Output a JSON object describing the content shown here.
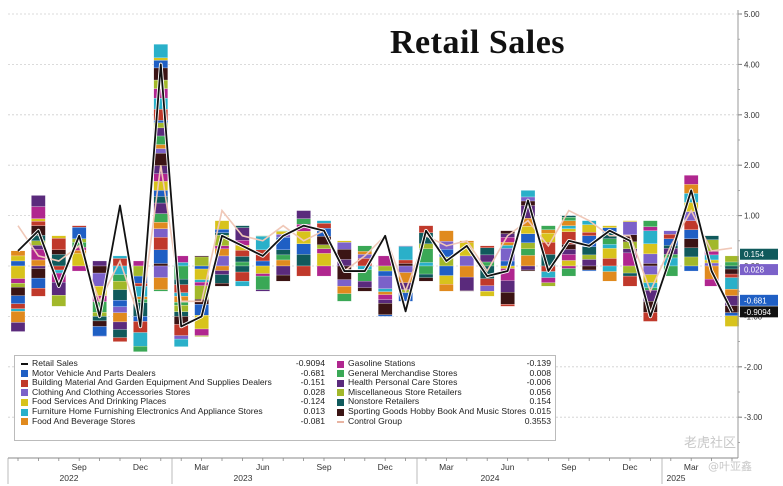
{
  "chart_data": {
    "type": "bar",
    "title": "Retail Sales",
    "stacked": true,
    "ylim": [
      -3.5,
      5.2
    ],
    "y_ticks": [
      "5.00",
      "4.00",
      "3.00",
      "2.00",
      "1.00",
      "0.00",
      "-1.00",
      "-2.00",
      "-3.00"
    ],
    "x_month_labels": [
      "Sep",
      "Dec",
      "Mar",
      "Jun",
      "Sep",
      "Dec",
      "Mar",
      "Jun",
      "Sep",
      "Dec",
      "Mar"
    ],
    "x_year_labels": [
      "2022",
      "2023",
      "2024",
      "2025"
    ],
    "x": [
      "2022-06",
      "2022-07",
      "2022-08",
      "2022-09",
      "2022-10",
      "2022-11",
      "2022-12",
      "2023-01",
      "2023-02",
      "2023-03",
      "2023-04",
      "2023-05",
      "2023-06",
      "2023-07",
      "2023-08",
      "2023-09",
      "2023-10",
      "2023-11",
      "2023-12",
      "2024-01",
      "2024-02",
      "2024-03",
      "2024-04",
      "2024-05",
      "2024-06",
      "2024-07",
      "2024-08",
      "2024-09",
      "2024-10",
      "2024-11",
      "2024-12",
      "2025-01",
      "2025-02",
      "2025-03",
      "2025-04",
      "2025-05"
    ],
    "retail_sales": [
      0.3,
      0.7,
      -0.4,
      0.6,
      -1.0,
      1.2,
      -1.2,
      4.0,
      -1.2,
      -1.0,
      0.6,
      0.4,
      0.2,
      0.6,
      0.8,
      0.7,
      -0.1,
      -0.1,
      0.6,
      -0.9,
      0.7,
      0.1,
      0.4,
      -0.2,
      -0.1,
      1.3,
      -0.1,
      0.5,
      0.4,
      0.7,
      0.5,
      -1.0,
      0.2,
      1.5,
      -0.1,
      -0.9094
    ],
    "control_group": [
      0.8,
      0.2,
      0.1,
      0.4,
      -0.7,
      0.1,
      -1.1,
      2.0,
      -0.7,
      -0.7,
      1.1,
      0.6,
      0.5,
      0.8,
      0.5,
      0.7,
      -0.1,
      0.2,
      0.6,
      -0.5,
      0.6,
      0.4,
      0.5,
      -0.1,
      0.6,
      0.9,
      0.4,
      1.1,
      0.9,
      0.6,
      0.6,
      -0.5,
      0.4,
      1.1,
      0.3,
      0.3553
    ],
    "bar_positive_totals": [
      0.3,
      1.4,
      0.6,
      0.8,
      0.1,
      0.2,
      0.1,
      4.4,
      0.2,
      0.2,
      0.9,
      0.8,
      0.6,
      0.7,
      1.1,
      0.9,
      0.5,
      0.4,
      0.2,
      0.4,
      0.8,
      0.7,
      0.5,
      0.4,
      0.7,
      1.5,
      0.8,
      1.0,
      0.9,
      0.8,
      0.9,
      0.9,
      0.7,
      1.8,
      0.6,
      0.2
    ],
    "bar_negative_totals": [
      -1.3,
      -0.6,
      -0.8,
      -0.1,
      -1.4,
      -1.5,
      -1.7,
      -0.5,
      -1.6,
      -1.4,
      -0.4,
      -0.4,
      -0.5,
      -0.3,
      -0.2,
      -0.2,
      -0.7,
      -0.5,
      -1.0,
      -0.7,
      -0.3,
      -0.5,
      -0.5,
      -0.6,
      -0.8,
      -0.1,
      -0.4,
      -0.2,
      -0.1,
      -0.3,
      -0.4,
      -1.1,
      -0.2,
      -0.1,
      -0.4,
      -1.2
    ],
    "series": [
      {
        "name": "Retail Sales",
        "latest": "-0.9094",
        "color": "#111111"
      },
      {
        "name": "Motor Vehicle And Parts Dealers",
        "latest": "-0.681",
        "color": "#1f5fc4"
      },
      {
        "name": "Building Material And Garden Equipment And Supplies Dealers",
        "latest": "-0.151",
        "color": "#c0392b"
      },
      {
        "name": "Clothing And Clothing Accessories Stores",
        "latest": "0.028",
        "color": "#7b61c9"
      },
      {
        "name": "Food Services And Drinking Places",
        "latest": "-0.124",
        "color": "#d8c31c"
      },
      {
        "name": "Furniture Home Furnishing Electronics And Appliance Stores",
        "latest": "0.013",
        "color": "#2ab0c9"
      },
      {
        "name": "Food And Beverage Stores",
        "latest": "-0.081",
        "color": "#e08a1e"
      },
      {
        "name": "Gasoline Stations",
        "latest": "-0.139",
        "color": "#b0268f"
      },
      {
        "name": "General Merchandise Stores",
        "latest": "0.008",
        "color": "#3aa856"
      },
      {
        "name": "Health Personal Care Stores",
        "latest": "-0.006",
        "color": "#5a2a7c"
      },
      {
        "name": "Miscellaneous Store Retailers",
        "latest": "0.056",
        "color": "#a2b82a"
      },
      {
        "name": "Nonstore Retailers",
        "latest": "0.154",
        "color": "#105a5c"
      },
      {
        "name": "Sporting Goods Hobby Book And Music Stores",
        "latest": "0.015",
        "color": "#3b1414"
      },
      {
        "name": "Control Group",
        "latest": "0.3553",
        "color": "#e8b4a2"
      }
    ],
    "right_axis_labels": [
      {
        "value": 0.154,
        "text": "0.154",
        "bg": "#105a5c"
      },
      {
        "value": 0.028,
        "text": "0.028",
        "bg": "#7b61c9"
      },
      {
        "value": -0.681,
        "text": "-0.681",
        "bg": "#1f5fc4"
      },
      {
        "value": -0.9094,
        "text": "-0.9094",
        "bg": "#111111"
      }
    ]
  },
  "watermark": {
    "brand": "老虎社区",
    "author": "@叶亚鑫"
  }
}
